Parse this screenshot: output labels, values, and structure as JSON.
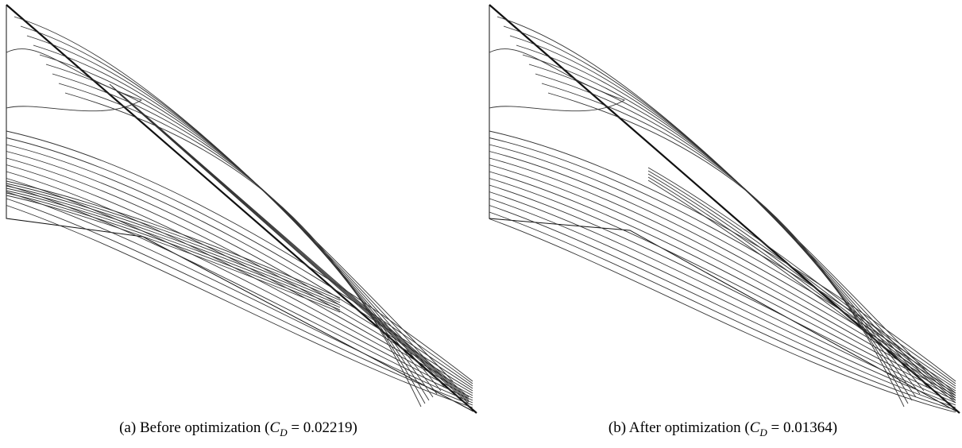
{
  "figures": [
    {
      "caption": {
        "prefix": "(a) Before optimization (",
        "symbol": "C",
        "subscript": "D",
        "suffix": " = 0.02219)"
      }
    },
    {
      "caption": {
        "prefix": "(b) After optimization (",
        "symbol": "C",
        "subscript": "D",
        "suffix": " = 0.01364)"
      }
    }
  ]
}
